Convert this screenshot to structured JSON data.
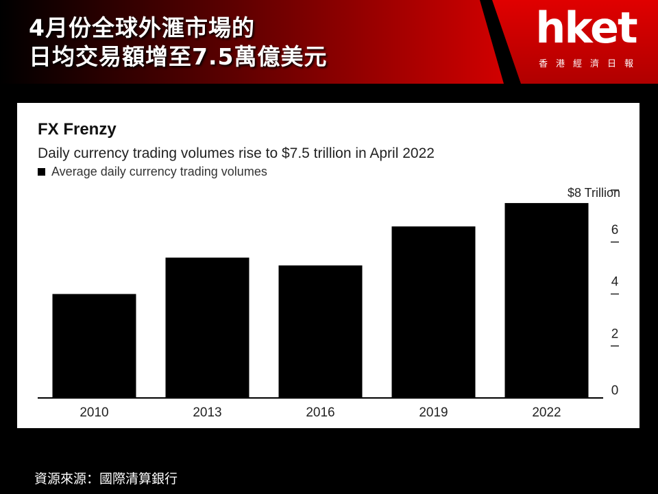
{
  "headline": {
    "line1": "4月份全球外滙市場的",
    "line2": "日均交易額增至7.5萬億美元"
  },
  "logo": {
    "wordmark": "hket",
    "subtitle": "香港經濟日報"
  },
  "colors": {
    "banner_red": "#c40000",
    "bar": "#000000",
    "panel": "#ffffff"
  },
  "chart_data": {
    "type": "bar",
    "title": "FX Frenzy",
    "subtitle": "Daily currency trading volumes rise to $7.5 trillion in April 2022",
    "legend": [
      "Average daily currency trading volumes"
    ],
    "legend_placement": "top-left",
    "unit_label": "$8 Trillion",
    "categories": [
      "2010",
      "2013",
      "2016",
      "2019",
      "2022"
    ],
    "series": [
      {
        "name": "Average daily currency trading volumes",
        "values": [
          4.0,
          5.4,
          5.1,
          6.6,
          7.5
        ]
      }
    ],
    "y_ticks": [
      0,
      2,
      4,
      6,
      8
    ],
    "y_tick_labels": [
      "0",
      "2",
      "4",
      "6",
      ""
    ],
    "ylim": [
      0,
      8
    ],
    "y_axis_side": "right",
    "grid": false
  },
  "source": "資源來源：國際清算銀行"
}
